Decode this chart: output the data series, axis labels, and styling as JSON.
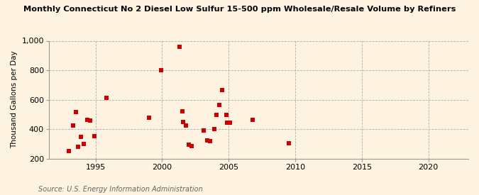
{
  "title": "Monthly Connecticut No 2 Diesel Low Sulfur 15-500 ppm Wholesale/Resale Volume by Refiners",
  "ylabel": "Thousand Gallons per Day",
  "source": "Source: U.S. Energy Information Administration",
  "background_color": "#fdf3e0",
  "dot_color": "#cc0000",
  "xlim": [
    1991.5,
    2023
  ],
  "ylim": [
    200,
    1000
  ],
  "xticks": [
    1995,
    2000,
    2005,
    2010,
    2015,
    2020
  ],
  "yticks": [
    200,
    400,
    600,
    800,
    1000
  ],
  "ytick_labels": [
    "200",
    "400",
    "600",
    "800",
    "1,000"
  ],
  "data_points": [
    [
      1993.0,
      250
    ],
    [
      1993.3,
      425
    ],
    [
      1993.5,
      515
    ],
    [
      1993.7,
      280
    ],
    [
      1993.9,
      350
    ],
    [
      1994.1,
      300
    ],
    [
      1994.4,
      465
    ],
    [
      1994.6,
      460
    ],
    [
      1994.9,
      355
    ],
    [
      1995.8,
      615
    ],
    [
      1999.0,
      478
    ],
    [
      1999.9,
      800
    ],
    [
      2001.3,
      960
    ],
    [
      2001.5,
      520
    ],
    [
      2001.6,
      450
    ],
    [
      2001.8,
      425
    ],
    [
      2002.0,
      295
    ],
    [
      2002.2,
      285
    ],
    [
      2003.1,
      390
    ],
    [
      2003.4,
      325
    ],
    [
      2003.6,
      320
    ],
    [
      2003.9,
      400
    ],
    [
      2004.1,
      495
    ],
    [
      2004.3,
      565
    ],
    [
      2004.5,
      665
    ],
    [
      2004.8,
      495
    ],
    [
      2004.9,
      445
    ],
    [
      2005.1,
      445
    ],
    [
      2006.8,
      465
    ],
    [
      2009.5,
      305
    ]
  ]
}
